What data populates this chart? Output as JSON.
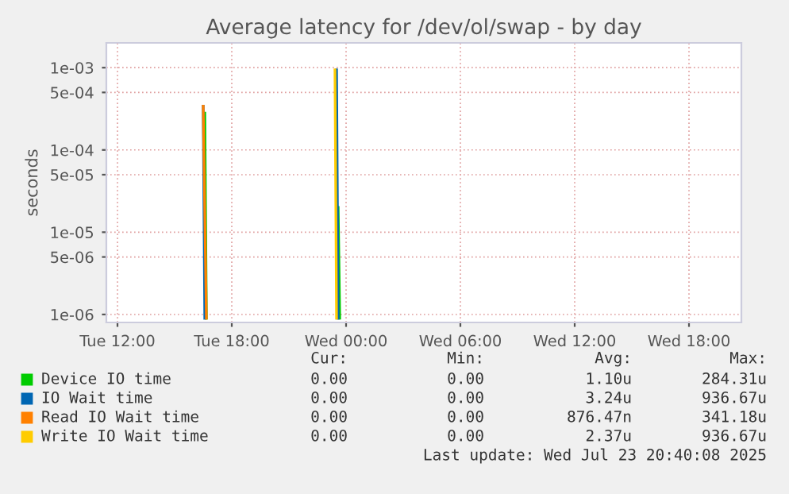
{
  "chart_data": {
    "type": "line",
    "title": "Average latency for /dev/ol/swap - by day",
    "ylabel": "seconds",
    "log": "y",
    "grid": true,
    "legend": "bottom",
    "xlim": [
      "2025-07-22T11:25",
      "2025-07-23T20:45"
    ],
    "xticks": [
      {
        "value": "2025-07-22T12:00",
        "label": "Tue 12:00"
      },
      {
        "value": "2025-07-22T18:00",
        "label": "Tue 18:00"
      },
      {
        "value": "2025-07-23T00:00",
        "label": "Wed 00:00"
      },
      {
        "value": "2025-07-23T06:00",
        "label": "Wed 06:00"
      },
      {
        "value": "2025-07-23T12:00",
        "label": "Wed 12:00"
      },
      {
        "value": "2025-07-23T18:00",
        "label": "Wed 18:00"
      }
    ],
    "ylim": [
      8e-07,
      0.002
    ],
    "yticks": [
      {
        "value": 1e-06,
        "label": "1e-06"
      },
      {
        "value": 5e-06,
        "label": "5e-06"
      },
      {
        "value": 1e-05,
        "label": "1e-05"
      },
      {
        "value": 5e-05,
        "label": "5e-05"
      },
      {
        "value": 0.0001,
        "label": "1e-04"
      },
      {
        "value": 0.0005,
        "label": "5e-04"
      },
      {
        "value": 0.001,
        "label": "1e-03"
      }
    ],
    "series": [
      {
        "name": "Device IO time",
        "color": "#00cc00",
        "x": [
          "2025-07-22T16:35",
          "2025-07-22T16:40",
          "2025-07-22T20:00",
          "2025-07-22T23:35",
          "2025-07-22T23:40"
        ],
        "values": [
          0.00028,
          9e-07,
          null,
          2e-05,
          9e-07
        ]
      },
      {
        "name": "IO Wait time",
        "color": "#0066b3",
        "x": [
          "2025-07-22T16:30",
          "2025-07-22T16:35",
          "2025-07-22T20:00",
          "2025-07-22T23:30",
          "2025-07-22T23:35"
        ],
        "values": [
          0.00034,
          9e-07,
          null,
          0.00094,
          9e-07
        ]
      },
      {
        "name": "Read IO Wait time",
        "color": "#ff8000",
        "x": [
          "2025-07-22T16:30",
          "2025-07-22T16:40"
        ],
        "values": [
          0.00034,
          9e-07
        ]
      },
      {
        "name": "Write IO Wait time",
        "color": "#ffcc00",
        "x": [
          "2025-07-22T23:25",
          "2025-07-22T23:30"
        ],
        "values": [
          0.00094,
          9e-07
        ]
      }
    ],
    "annotations": [
      "Cur:",
      "Min:",
      "Avg:",
      "Max:",
      "0.00",
      "0.00",
      "1.10u",
      "284.31u",
      "0.00",
      "0.00",
      "3.24u",
      "936.67u",
      "0.00",
      "0.00",
      "876.47n",
      "341.18u",
      "0.00",
      "0.00",
      "2.37u",
      "936.67u",
      "Last update: Wed Jul 23 20:40:08 2025"
    ]
  }
}
